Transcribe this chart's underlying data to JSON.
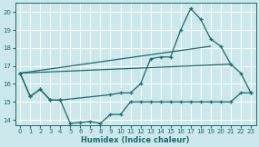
{
  "xlabel": "Humidex (Indice chaleur)",
  "bg_color": "#cce8ec",
  "grid_color": "#ffffff",
  "line_color": "#1a6b6b",
  "xlim": [
    -0.5,
    23.5
  ],
  "ylim": [
    13.7,
    20.5
  ],
  "yticks": [
    14,
    15,
    16,
    17,
    18,
    19,
    20
  ],
  "xticks": [
    0,
    1,
    2,
    3,
    4,
    5,
    6,
    7,
    8,
    9,
    10,
    11,
    12,
    13,
    14,
    15,
    16,
    17,
    18,
    19,
    20,
    21,
    22,
    23
  ],
  "curve1_x": [
    0,
    1,
    2,
    3,
    4,
    5,
    6,
    7,
    8,
    9,
    10,
    11,
    12,
    13,
    14,
    15,
    16,
    17,
    18,
    19,
    20,
    21,
    22,
    23
  ],
  "curve1_y": [
    16.6,
    15.3,
    15.7,
    15.1,
    15.1,
    13.8,
    13.85,
    13.9,
    13.8,
    14.3,
    14.3,
    15.0,
    15.0,
    15.0,
    15.0,
    15.0,
    15.0,
    15.0,
    15.0,
    15.0,
    15.0,
    15.0,
    15.5,
    15.5
  ],
  "curve2_x": [
    0,
    1,
    2,
    3,
    4,
    9,
    10,
    11,
    12,
    13,
    14,
    15,
    16,
    17,
    18,
    19,
    20,
    21,
    22,
    23
  ],
  "curve2_y": [
    16.6,
    15.3,
    15.7,
    15.1,
    15.1,
    15.4,
    15.5,
    15.5,
    16.0,
    17.4,
    17.5,
    17.5,
    19.0,
    20.2,
    19.6,
    18.5,
    18.1,
    17.1,
    16.6,
    15.5
  ],
  "trendline1_x": [
    0,
    19
  ],
  "trendline1_y": [
    16.6,
    18.1
  ],
  "trendline2_x": [
    0,
    21
  ],
  "trendline2_y": [
    16.6,
    17.1
  ]
}
